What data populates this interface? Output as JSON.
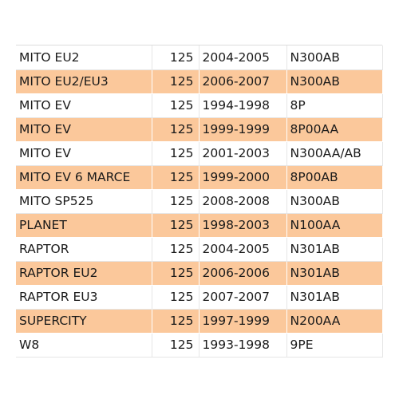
{
  "colors": {
    "row_highlight": "#fbc89b",
    "row_plain": "#ffffff",
    "text": "#1a1a1a"
  },
  "table": {
    "rows": [
      {
        "model": "MITO EU2",
        "cc": "125",
        "years": "2004-2005",
        "code": "N300AB"
      },
      {
        "model": "MITO EU2/EU3",
        "cc": "125",
        "years": "2006-2007",
        "code": "N300AB"
      },
      {
        "model": "MITO EV",
        "cc": "125",
        "years": "1994-1998",
        "code": "8P"
      },
      {
        "model": "MITO EV",
        "cc": "125",
        "years": "1999-1999",
        "code": "8P00AA"
      },
      {
        "model": "MITO EV",
        "cc": "125",
        "years": "2001-2003",
        "code": "N300AA/AB"
      },
      {
        "model": "MITO EV 6 MARCE",
        "cc": "125",
        "years": "1999-2000",
        "code": "8P00AB"
      },
      {
        "model": "MITO SP525",
        "cc": "125",
        "years": "2008-2008",
        "code": "N300AB"
      },
      {
        "model": "PLANET",
        "cc": "125",
        "years": "1998-2003",
        "code": "N100AA"
      },
      {
        "model": "RAPTOR",
        "cc": "125",
        "years": "2004-2005",
        "code": "N301AB"
      },
      {
        "model": "RAPTOR EU2",
        "cc": "125",
        "years": "2006-2006",
        "code": "N301AB"
      },
      {
        "model": "RAPTOR EU3",
        "cc": "125",
        "years": "2007-2007",
        "code": "N301AB"
      },
      {
        "model": "SUPERCITY",
        "cc": "125",
        "years": "1997-1999",
        "code": "N200AA"
      },
      {
        "model": "W8",
        "cc": "125",
        "years": "1993-1998",
        "code": "9PE"
      }
    ]
  }
}
